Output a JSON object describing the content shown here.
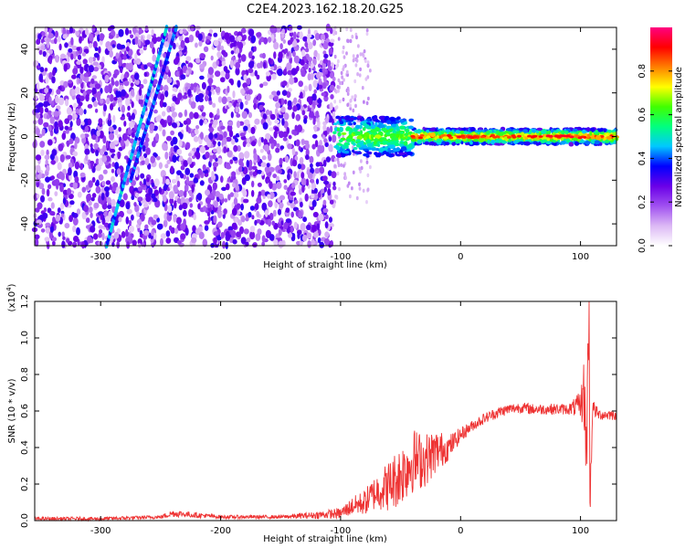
{
  "title": "C2E4.2023.162.18.20.G25",
  "chart_data": [
    {
      "type": "heatmap",
      "xlabel": "Height of straight line (km)",
      "ylabel": "Frequency (Hz)",
      "xlim": [
        -355,
        130
      ],
      "ylim": [
        -50,
        50
      ],
      "xticks": [
        -300,
        -200,
        -100,
        0,
        100
      ],
      "yticks": [
        -40,
        -20,
        0,
        20,
        40
      ],
      "colorbar": {
        "label": "Normalized spectral amplitude",
        "range": [
          0.0,
          1.0
        ],
        "ticks": [
          0.0,
          0.2,
          0.4,
          0.6,
          0.8
        ],
        "colors": [
          "#ffffff",
          "#dcb8f5",
          "#a050f0",
          "#6a00e8",
          "#0000ff",
          "#00c8ff",
          "#00ff80",
          "#40ff00",
          "#ffff00",
          "#ff8000",
          "#ff0000",
          "#ff0080"
        ]
      },
      "regions": [
        {
          "name": "noise",
          "x": [
            -355,
            -105
          ],
          "freq": [
            -50,
            50
          ],
          "level": 0.3
        },
        {
          "name": "band",
          "x": [
            -105,
            130
          ],
          "freq": [
            -5,
            5
          ],
          "level": 0.85
        },
        {
          "name": "diagonal-line",
          "from": [
            -295,
            -50
          ],
          "to": [
            -245,
            50
          ],
          "level": 0.35
        },
        {
          "name": "diagonal-line",
          "from": [
            -275,
            -20
          ],
          "to": [
            -237,
            50
          ],
          "level": 0.3
        }
      ]
    },
    {
      "type": "line",
      "xlabel": "Height of straight line (km)",
      "ylabel": "SNR (10 * v/v)",
      "multiplier_label": "(x10",
      "multiplier_exp": "4",
      "xlim": [
        -355,
        130
      ],
      "ylim": [
        0.0,
        1.2
      ],
      "xticks": [
        -300,
        -200,
        -100,
        0,
        100
      ],
      "yticks": [
        0.0,
        0.2,
        0.4,
        0.6,
        0.8,
        1.0,
        1.2
      ],
      "series": [
        {
          "color": "#ee3333",
          "x": [
            -355,
            -300,
            -250,
            -240,
            -200,
            -150,
            -120,
            -100,
            -90,
            -80,
            -70,
            -60,
            -50,
            -40,
            -30,
            -20,
            -10,
            0,
            10,
            20,
            30,
            40,
            50,
            60,
            70,
            80,
            90,
            95,
            100,
            103,
            105,
            107,
            108,
            110,
            115,
            120,
            130
          ],
          "y": [
            0.01,
            0.01,
            0.02,
            0.04,
            0.02,
            0.02,
            0.03,
            0.04,
            0.08,
            0.1,
            0.16,
            0.19,
            0.25,
            0.33,
            0.33,
            0.38,
            0.4,
            0.47,
            0.52,
            0.56,
            0.59,
            0.61,
            0.62,
            0.61,
            0.61,
            0.61,
            0.61,
            0.62,
            0.63,
            0.7,
            0.35,
            1.2,
            0.1,
            0.62,
            0.58,
            0.58,
            0.58
          ],
          "noise": [
            0.01,
            0.01,
            0.01,
            0.02,
            0.01,
            0.01,
            0.02,
            0.03,
            0.05,
            0.07,
            0.1,
            0.14,
            0.17,
            0.18,
            0.15,
            0.12,
            0.07,
            0.04,
            0.03,
            0.03,
            0.03,
            0.03,
            0.03,
            0.03,
            0.03,
            0.03,
            0.03,
            0.05,
            0.08,
            0.2,
            0.25,
            0.3,
            0.2,
            0.05,
            0.03,
            0.03,
            0.03
          ]
        }
      ]
    }
  ]
}
